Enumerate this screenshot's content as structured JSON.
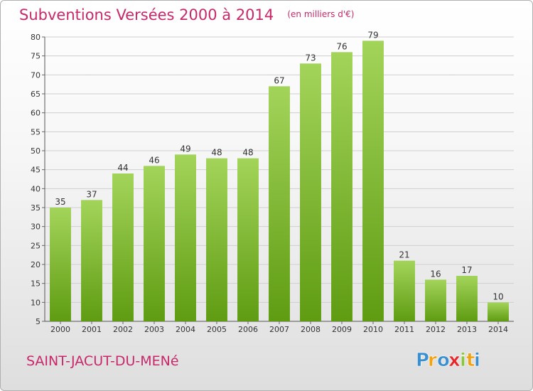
{
  "header": {
    "title": "Subventions Versées 2000 à 2014",
    "unit": "(en milliers d'€)"
  },
  "commune": "SAINT-JACUT-DU-MENé",
  "logo": {
    "text": "Proxiti",
    "letters": [
      {
        "ch": "P",
        "color": "#3a8fd1"
      },
      {
        "ch": "r",
        "color": "#f2a20e"
      },
      {
        "ch": "o",
        "color": "#3a8fd1"
      },
      {
        "ch": "x",
        "color": "#e8262a"
      },
      {
        "ch": "i",
        "color": "#8bc53f"
      },
      {
        "ch": "t",
        "color": "#f2a20e"
      },
      {
        "ch": "i",
        "color": "#3a8fd1"
      }
    ]
  },
  "chart_data": {
    "type": "bar",
    "categories": [
      "2000",
      "2001",
      "2002",
      "2003",
      "2004",
      "2005",
      "2006",
      "2007",
      "2008",
      "2009",
      "2010",
      "2011",
      "2012",
      "2013",
      "2014"
    ],
    "values": [
      35,
      37,
      44,
      46,
      49,
      48,
      48,
      67,
      73,
      76,
      79,
      21,
      16,
      17,
      10
    ],
    "title": "Subventions Versées 2000 à 2014",
    "ylabel": "",
    "xlabel": "",
    "ylim": [
      5,
      80
    ],
    "yticks": [
      5,
      10,
      15,
      20,
      25,
      30,
      35,
      40,
      45,
      50,
      55,
      60,
      65,
      70,
      75,
      80
    ],
    "grid": true,
    "colors": {
      "bar_top": "#a3d45a",
      "bar_bottom": "#5f9c12",
      "grid": "#cfcfcf",
      "axis_text": "#333333"
    }
  }
}
